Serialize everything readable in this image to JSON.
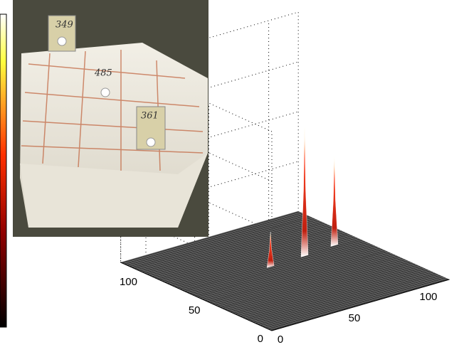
{
  "chart_data": {
    "type": "surface3d",
    "xlim": [
      0,
      120
    ],
    "ylim": [
      0,
      120
    ],
    "zlim": [
      0,
      4
    ],
    "xticks": [
      0,
      50,
      100
    ],
    "yticks": [
      0,
      50,
      100
    ],
    "peaks": {
      "x": [
        57.9,
        81.7,
        103.7
      ],
      "y": [
        69.1,
        70,
        72.2
      ],
      "z": [
        0.7,
        2.6,
        1.8
      ]
    },
    "surface_color": "#3a3a3a",
    "inset_labels": [
      "349",
      "485",
      "361"
    ]
  }
}
